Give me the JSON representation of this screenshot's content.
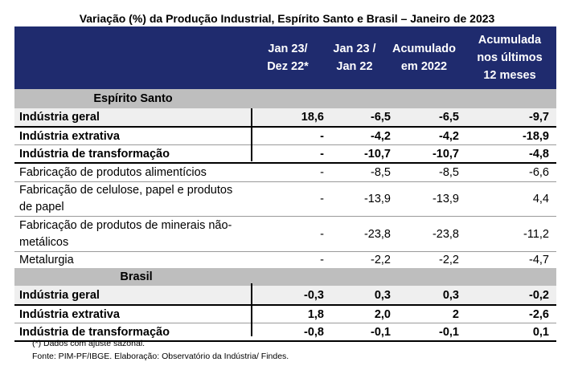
{
  "title": "Variação (%) da Produção Industrial, Espírito Santo e Brasil – Janeiro de 2023",
  "columns": [
    "",
    "Jan 23/ Dez 22*",
    "Jan 23 / Jan 22",
    "Acumulado em 2022",
    "Acumulada nos últimos 12 meses"
  ],
  "header": {
    "c1a": "Jan 23/",
    "c1b": "Dez 22*",
    "c2a": "Jan 23 /",
    "c2b": "Jan 22",
    "c3a": "Acumulado",
    "c3b": "em 2022",
    "c4a": "Acumulada",
    "c4b": "nos últimos",
    "c4c": "12 meses"
  },
  "sections": {
    "es": {
      "name": "Espírito Santo",
      "rows": [
        {
          "label": "Indústria geral",
          "v": [
            "18,6",
            "-6,5",
            "-6,5",
            "-9,7"
          ]
        },
        {
          "label": "Indústria extrativa",
          "v": [
            "-",
            "-4,2",
            "-4,2",
            "-18,9"
          ]
        },
        {
          "label": "Indústria de transformação",
          "v": [
            "-",
            "-10,7",
            "-10,7",
            "-4,8"
          ]
        },
        {
          "label": "Fabricação de produtos alimentícios",
          "v": [
            "-",
            "-8,5",
            "-8,5",
            "-6,6"
          ]
        },
        {
          "label_a": "Fabricação de celulose, papel e produtos",
          "label_b": "de papel",
          "v": [
            "-",
            "-13,9",
            "-13,9",
            "4,4"
          ]
        },
        {
          "label_a": "Fabricação de produtos de minerais não-",
          "label_b": "metálicos",
          "v": [
            "-",
            "-23,8",
            "-23,8",
            "-11,2"
          ]
        },
        {
          "label": "Metalurgia",
          "v": [
            "-",
            "-2,2",
            "-2,2",
            "-4,7"
          ]
        }
      ]
    },
    "br": {
      "name": "Brasil",
      "rows": [
        {
          "label": "Indústria geral",
          "v": [
            "-0,3",
            "0,3",
            "0,3",
            "-0,2"
          ]
        },
        {
          "label": "Indústria extrativa",
          "v": [
            "1,8",
            "2,0",
            "2",
            "-2,6"
          ]
        },
        {
          "label": "Indústria de transformação",
          "v": [
            "-0,8",
            "-0,1",
            "-0,1",
            "0,1"
          ]
        }
      ]
    }
  },
  "notes": {
    "n1": "(*) Dados com ajuste sazonal.",
    "n2": "Fonte: PIM-PF/IBGE. Elaboração: Observatório da Indústria/ Findes."
  },
  "colors": {
    "header_bg": "#1f2b6e",
    "section_bg": "#bebebe"
  }
}
